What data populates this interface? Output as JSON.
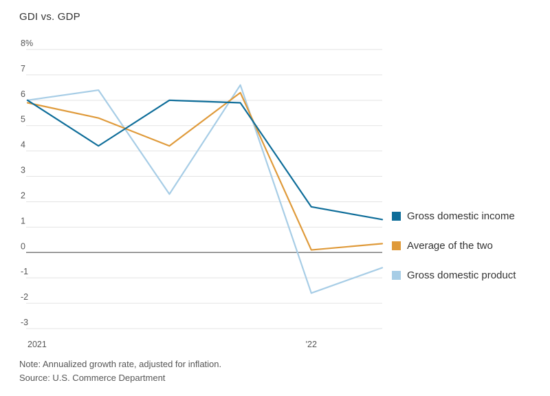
{
  "title": "GDI vs. GDP",
  "note": "Note: Annualized growth rate, adjusted for inflation.",
  "source": "Source: U.S. Commerce Department",
  "colors": {
    "gridline": "#e3e3e3",
    "zero_line": "#7a7a7a",
    "axis_text": "#555555",
    "title_text": "#333333"
  },
  "chart_data": {
    "type": "line",
    "n_points": 6,
    "x_tick_labels": [
      {
        "index": 0,
        "label": "2021",
        "anchor": "start"
      },
      {
        "index": 4,
        "label": "'22",
        "anchor": "middle"
      }
    ],
    "series": [
      {
        "name": "Gross domestic income",
        "color": "#0e6d99",
        "values": [
          6.0,
          4.2,
          6.0,
          5.9,
          1.8,
          1.3
        ]
      },
      {
        "name": "Average of the two",
        "color": "#df9a3a",
        "values": [
          5.9,
          5.3,
          4.2,
          6.3,
          0.1,
          0.35
        ]
      },
      {
        "name": "Gross domestic product",
        "color": "#a7cde6",
        "values": [
          6.0,
          6.4,
          2.3,
          6.6,
          -1.6,
          -0.6
        ]
      }
    ],
    "ylim": [
      -3,
      8
    ],
    "yticks": [
      {
        "value": 8,
        "label": "8%"
      },
      {
        "value": 7,
        "label": "7"
      },
      {
        "value": 6,
        "label": "6"
      },
      {
        "value": 5,
        "label": "5"
      },
      {
        "value": 4,
        "label": "4"
      },
      {
        "value": 3,
        "label": "3"
      },
      {
        "value": 2,
        "label": "2"
      },
      {
        "value": 1,
        "label": "1"
      },
      {
        "value": 0,
        "label": "0"
      },
      {
        "value": -1,
        "label": "-1"
      },
      {
        "value": -2,
        "label": "-2"
      },
      {
        "value": -3,
        "label": "-3"
      }
    ],
    "zero_line": true,
    "grid": true,
    "legend_position": "right"
  }
}
